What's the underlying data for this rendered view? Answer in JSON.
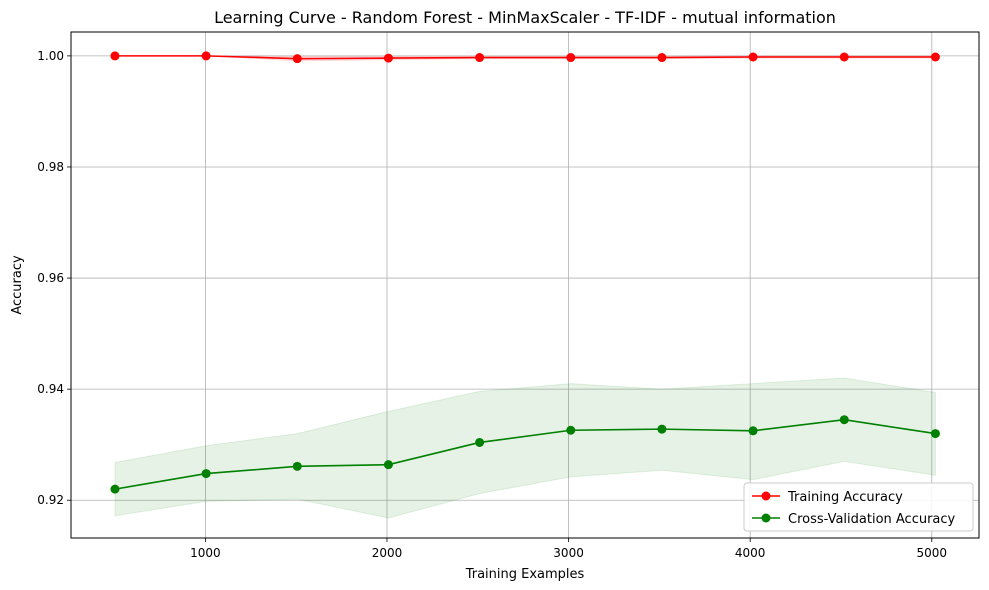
{
  "chart_data": {
    "type": "line",
    "title": "Learning Curve - Random Forest - MinMaxScaler - TF-IDF - mutual information",
    "xlabel": "Training Examples",
    "ylabel": "Accuracy",
    "xlim": [
      260,
      5260
    ],
    "ylim": [
      0.9132,
      1.0043
    ],
    "xticks": [
      1000,
      2000,
      3000,
      4000,
      5000
    ],
    "yticks": [
      0.92,
      0.94,
      0.96,
      0.98,
      1.0
    ],
    "xtick_labels": [
      "1000",
      "2000",
      "3000",
      "4000",
      "5000"
    ],
    "ytick_labels": [
      "0.92",
      "0.94",
      "0.96",
      "0.98",
      "1.00"
    ],
    "grid": true,
    "legend_position": "lower right",
    "x": [
      502,
      1004,
      1506,
      2008,
      2510,
      3012,
      3514,
      4016,
      4518,
      5020
    ],
    "series": [
      {
        "name": "Training Accuracy",
        "color": "#ff0000",
        "band_color": "#ff0000",
        "values": [
          1.0,
          1.0,
          0.9995,
          0.9996,
          0.9997,
          0.9997,
          0.9997,
          0.9998,
          0.9998,
          0.9998
        ],
        "lower": [
          1.0,
          1.0,
          0.9991,
          0.9993,
          0.9995,
          0.9995,
          0.9995,
          0.9996,
          0.9996,
          0.9996
        ],
        "upper": [
          1.0,
          1.0,
          0.9999,
          0.9999,
          0.9999,
          0.9999,
          0.9999,
          1.0,
          1.0,
          1.0
        ]
      },
      {
        "name": "Cross-Validation Accuracy",
        "color": "#008000",
        "band_color": "#008000",
        "values": [
          0.922,
          0.9248,
          0.9261,
          0.9264,
          0.9304,
          0.9326,
          0.9328,
          0.9325,
          0.9345,
          0.932
        ],
        "lower": [
          0.9172,
          0.9198,
          0.9202,
          0.9168,
          0.9212,
          0.9242,
          0.9254,
          0.9237,
          0.927,
          0.9245
        ],
        "upper": [
          0.9268,
          0.9298,
          0.932,
          0.936,
          0.9396,
          0.941,
          0.94,
          0.941,
          0.942,
          0.9394
        ]
      }
    ]
  }
}
